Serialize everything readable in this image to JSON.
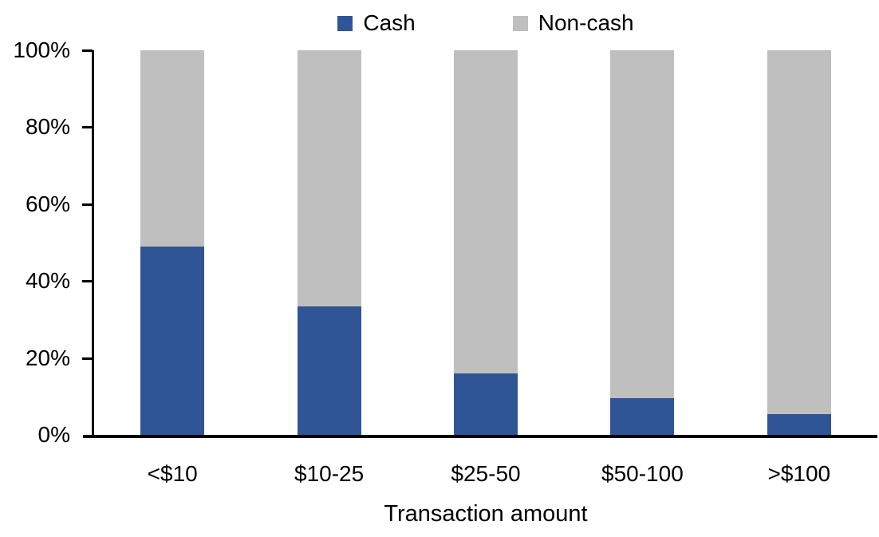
{
  "chart_data": {
    "type": "bar",
    "subtype": "stacked-100-percent",
    "categories": [
      "<$10",
      "$10-25",
      "$25-50",
      "$50-100",
      ">$100"
    ],
    "series": [
      {
        "name": "Cash",
        "color": "#2F5596",
        "values": [
          49,
          33.5,
          16,
          9.5,
          5.5
        ]
      },
      {
        "name": "Non-cash",
        "color": "#BFBFBF",
        "values": [
          51,
          66.5,
          84,
          90.5,
          94.5
        ]
      }
    ],
    "title": "",
    "xlabel": "Transaction amount",
    "ylabel": "",
    "ylim": [
      0,
      100
    ],
    "y_ticks": [
      {
        "value": 0,
        "label": "0%"
      },
      {
        "value": 20,
        "label": "20%"
      },
      {
        "value": 40,
        "label": "40%"
      },
      {
        "value": 60,
        "label": "60%"
      },
      {
        "value": 80,
        "label": "80%"
      },
      {
        "value": 100,
        "label": "100%"
      }
    ],
    "grid": false,
    "legend_position": "top-center",
    "axis_color": "#000000"
  }
}
